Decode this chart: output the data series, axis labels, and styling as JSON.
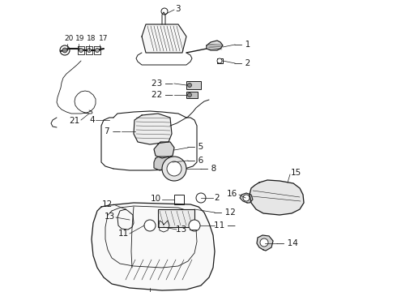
{
  "bg_color": "#ffffff",
  "lc": "#1a1a1a",
  "fig_w": 4.9,
  "fig_h": 3.6,
  "dpi": 100,
  "font_size": 7.5,
  "font_size_sm": 6.5
}
